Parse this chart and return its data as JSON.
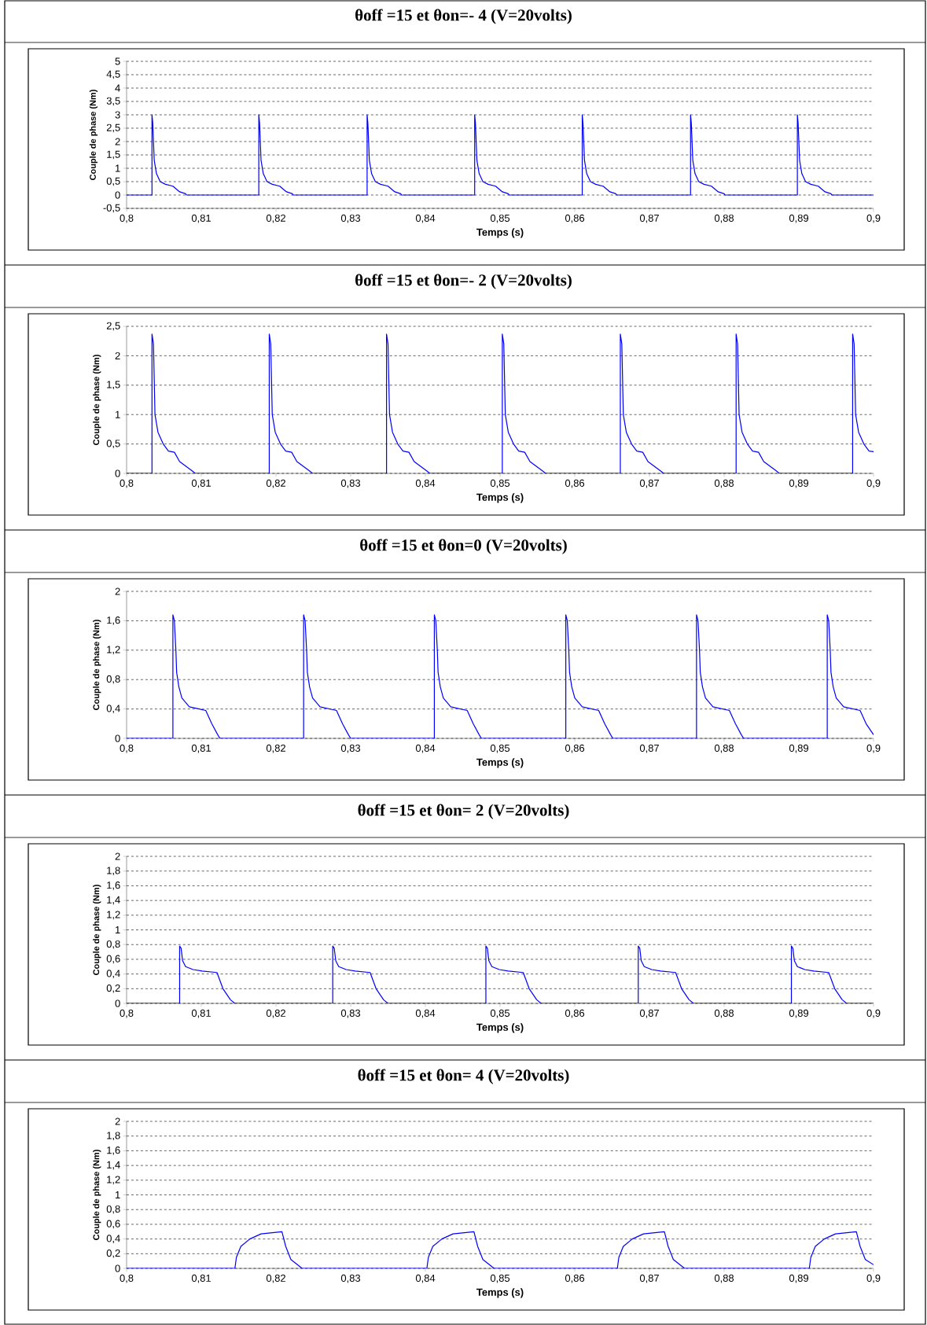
{
  "chart_data": [
    {
      "type": "line",
      "title": "θoff =15 et θon=- 4  (V=20volts)",
      "xlabel": "Temps (s)",
      "ylabel": "Couple de phase (Nm)",
      "xlim": [
        0.8,
        0.9
      ],
      "ylim": [
        -0.5,
        5
      ],
      "grid": "y",
      "xticks": [
        {
          "value": 0.8,
          "label": "0,8"
        },
        {
          "value": 0.81,
          "label": "0,81"
        },
        {
          "value": 0.82,
          "label": "0,82"
        },
        {
          "value": 0.83,
          "label": "0,83"
        },
        {
          "value": 0.84,
          "label": "0,84"
        },
        {
          "value": 0.85,
          "label": "0,85"
        },
        {
          "value": 0.86,
          "label": "0,86"
        },
        {
          "value": 0.87,
          "label": "0,87"
        },
        {
          "value": 0.88,
          "label": "0,88"
        },
        {
          "value": 0.89,
          "label": "0,89"
        },
        {
          "value": 0.9,
          "label": "0,9"
        }
      ],
      "yticks": [
        {
          "value": -0.5,
          "label": "-0,5"
        },
        0,
        {
          "value": 0.5,
          "label": "0,5"
        },
        1,
        {
          "value": 1.5,
          "label": "1,5"
        },
        2,
        {
          "value": 2.5,
          "label": "2,5"
        },
        3,
        {
          "value": 3.5,
          "label": "3,5"
        },
        4,
        {
          "value": 4.5,
          "label": "4,5"
        },
        5
      ],
      "series": [
        {
          "color": "#0000ff",
          "x": [
            0.8,
            0.8034,
            0.8034,
            0.8035,
            0.8037,
            0.804,
            0.8045,
            0.8052,
            0.8062,
            0.8071,
            0.8079,
            0.808,
            0.8177,
            0.8177,
            0.8178,
            0.818,
            0.8183,
            0.8188,
            0.8195,
            0.8205,
            0.8214,
            0.8222,
            0.8223,
            0.8322,
            0.8322,
            0.8323,
            0.8325,
            0.8328,
            0.8333,
            0.834,
            0.835,
            0.8359,
            0.8367,
            0.8368,
            0.8466,
            0.8466,
            0.8467,
            0.8469,
            0.8472,
            0.8477,
            0.8484,
            0.8494,
            0.8503,
            0.8511,
            0.8512,
            0.861,
            0.861,
            0.8611,
            0.8613,
            0.8616,
            0.8621,
            0.8628,
            0.8638,
            0.8647,
            0.8655,
            0.8656,
            0.8755,
            0.8755,
            0.8756,
            0.8758,
            0.8761,
            0.8766,
            0.8773,
            0.8783,
            0.8792,
            0.88,
            0.8801,
            0.8898,
            0.8898,
            0.8899,
            0.8901,
            0.8904,
            0.8909,
            0.8916,
            0.8926,
            0.8935,
            0.8943,
            0.8944,
            0.9
          ],
          "values": [
            0,
            0,
            3,
            2.7,
            1.3,
            0.8,
            0.5,
            0.4,
            0.33,
            0.12,
            0.05,
            0,
            0,
            3,
            2.7,
            1.3,
            0.8,
            0.5,
            0.4,
            0.33,
            0.12,
            0.05,
            0,
            0,
            3,
            2.7,
            1.3,
            0.8,
            0.5,
            0.4,
            0.33,
            0.12,
            0.05,
            0,
            0,
            3,
            2.7,
            1.3,
            0.8,
            0.5,
            0.4,
            0.33,
            0.12,
            0.05,
            0,
            0,
            3,
            2.7,
            1.3,
            0.8,
            0.5,
            0.4,
            0.33,
            0.12,
            0.05,
            0,
            0,
            3,
            2.7,
            1.3,
            0.8,
            0.5,
            0.4,
            0.33,
            0.12,
            0.05,
            0,
            0,
            3,
            2.7,
            1.3,
            0.8,
            0.5,
            0.4,
            0.33,
            0.12,
            0.05,
            0,
            0
          ]
        }
      ]
    },
    {
      "type": "line",
      "title": "θoff =15 et θon=- 2  (V=20volts)",
      "xlabel": "Temps (s)",
      "ylabel": "Couple de phase (Nm)",
      "xlim": [
        0.8,
        0.9
      ],
      "ylim": [
        0,
        2.5
      ],
      "grid": "y",
      "xticks": [
        {
          "value": 0.8,
          "label": "0,8"
        },
        {
          "value": 0.81,
          "label": "0,81"
        },
        {
          "value": 0.82,
          "label": "0,82"
        },
        {
          "value": 0.83,
          "label": "0,83"
        },
        {
          "value": 0.84,
          "label": "0,84"
        },
        {
          "value": 0.85,
          "label": "0,85"
        },
        {
          "value": 0.86,
          "label": "0,86"
        },
        {
          "value": 0.87,
          "label": "0,87"
        },
        {
          "value": 0.88,
          "label": "0,88"
        },
        {
          "value": 0.89,
          "label": "0,89"
        },
        {
          "value": 0.9,
          "label": "0,9"
        }
      ],
      "yticks": [
        0,
        {
          "value": 0.5,
          "label": "0,5"
        },
        1,
        {
          "value": 1.5,
          "label": "1,5"
        },
        2,
        {
          "value": 2.5,
          "label": "2,5"
        }
      ],
      "series": [
        {
          "color": "#0000ff",
          "x": [
            0.8,
            0.8034,
            0.8034,
            0.8036,
            0.8038,
            0.8042,
            0.8049,
            0.8056,
            0.8064,
            0.8071,
            0.8087,
            0.8092,
            0.8191,
            0.8191,
            0.8193,
            0.8195,
            0.8199,
            0.8206,
            0.8213,
            0.8221,
            0.8228,
            0.8244,
            0.8249,
            0.8348,
            0.8348,
            0.835,
            0.8352,
            0.8356,
            0.8363,
            0.837,
            0.8378,
            0.8385,
            0.8401,
            0.8406,
            0.8503,
            0.8503,
            0.8505,
            0.8507,
            0.8511,
            0.8518,
            0.8525,
            0.8533,
            0.854,
            0.8556,
            0.8561,
            0.8661,
            0.8661,
            0.8663,
            0.8665,
            0.8669,
            0.8676,
            0.8683,
            0.8691,
            0.8698,
            0.8714,
            0.8719,
            0.8816,
            0.8816,
            0.8818,
            0.882,
            0.8824,
            0.8831,
            0.8838,
            0.8846,
            0.8853,
            0.8869,
            0.8874,
            0.8972,
            0.8972,
            0.8974,
            0.8976,
            0.898,
            0.8987,
            0.8994,
            0.9
          ],
          "values": [
            0,
            0,
            2.37,
            2.2,
            1.0,
            0.7,
            0.5,
            0.38,
            0.36,
            0.2,
            0.05,
            0,
            0,
            2.37,
            2.2,
            1.0,
            0.7,
            0.5,
            0.38,
            0.36,
            0.2,
            0.05,
            0,
            0,
            2.37,
            2.2,
            1.0,
            0.7,
            0.5,
            0.38,
            0.36,
            0.2,
            0.05,
            0,
            0,
            2.37,
            2.2,
            1.0,
            0.7,
            0.5,
            0.38,
            0.36,
            0.2,
            0.05,
            0,
            0,
            2.37,
            2.2,
            1.0,
            0.7,
            0.5,
            0.38,
            0.36,
            0.2,
            0.05,
            0,
            0,
            2.37,
            2.2,
            1.0,
            0.7,
            0.5,
            0.38,
            0.36,
            0.2,
            0.05,
            0,
            0,
            2.37,
            2.2,
            1.0,
            0.7,
            0.5,
            0.38,
            0.37
          ]
        }
      ]
    },
    {
      "type": "line",
      "title": "θoff =15 et θon=0  (V=20volts)",
      "xlabel": "Temps (s)",
      "ylabel": "Couple de phase (Nm)",
      "xlim": [
        0.8,
        0.9
      ],
      "ylim": [
        0,
        2
      ],
      "grid": "y",
      "xticks": [
        {
          "value": 0.8,
          "label": "0,8"
        },
        {
          "value": 0.81,
          "label": "0,81"
        },
        {
          "value": 0.82,
          "label": "0,82"
        },
        {
          "value": 0.83,
          "label": "0,83"
        },
        {
          "value": 0.84,
          "label": "0,84"
        },
        {
          "value": 0.85,
          "label": "0,85"
        },
        {
          "value": 0.86,
          "label": "0,86"
        },
        {
          "value": 0.87,
          "label": "0,87"
        },
        {
          "value": 0.88,
          "label": "0,88"
        },
        {
          "value": 0.89,
          "label": "0,89"
        },
        {
          "value": 0.9,
          "label": "0,9"
        }
      ],
      "yticks": [
        0,
        {
          "value": 0.4,
          "label": "0,4"
        },
        {
          "value": 0.8,
          "label": "0,8"
        },
        {
          "value": 1.2,
          "label": "1,2"
        },
        {
          "value": 1.6,
          "label": "1,6"
        },
        2
      ],
      "series": [
        {
          "color": "#0000ff",
          "x": [
            0.8,
            0.8062,
            0.8062,
            0.8064,
            0.8066,
            0.8067,
            0.807,
            0.8074,
            0.8084,
            0.8106,
            0.8114,
            0.8122,
            0.8125,
            0.8237,
            0.8237,
            0.8239,
            0.8241,
            0.8242,
            0.8245,
            0.8249,
            0.8259,
            0.8281,
            0.8289,
            0.8297,
            0.83,
            0.8412,
            0.8412,
            0.8414,
            0.8416,
            0.8417,
            0.842,
            0.8424,
            0.8434,
            0.8456,
            0.8464,
            0.8472,
            0.8475,
            0.8588,
            0.8588,
            0.859,
            0.8592,
            0.8593,
            0.8596,
            0.86,
            0.861,
            0.8632,
            0.864,
            0.8648,
            0.8651,
            0.8763,
            0.8763,
            0.8765,
            0.8767,
            0.8768,
            0.8771,
            0.8775,
            0.8785,
            0.8807,
            0.8815,
            0.8823,
            0.8826,
            0.8938,
            0.8938,
            0.894,
            0.8942,
            0.8943,
            0.8946,
            0.895,
            0.896,
            0.8982,
            0.899,
            0.9
          ],
          "values": [
            0,
            0,
            1.68,
            1.6,
            1.2,
            0.9,
            0.7,
            0.55,
            0.43,
            0.38,
            0.2,
            0.05,
            0,
            0,
            1.68,
            1.6,
            1.2,
            0.9,
            0.7,
            0.55,
            0.43,
            0.38,
            0.2,
            0.05,
            0,
            0,
            1.68,
            1.6,
            1.2,
            0.9,
            0.7,
            0.55,
            0.43,
            0.38,
            0.2,
            0.05,
            0,
            0,
            1.68,
            1.6,
            1.2,
            0.9,
            0.7,
            0.55,
            0.43,
            0.38,
            0.2,
            0.05,
            0,
            0,
            1.68,
            1.6,
            1.2,
            0.9,
            0.7,
            0.55,
            0.43,
            0.38,
            0.2,
            0.05,
            0,
            0,
            1.68,
            1.6,
            1.2,
            0.9,
            0.7,
            0.55,
            0.43,
            0.38,
            0.2,
            0.05
          ]
        }
      ]
    },
    {
      "type": "line",
      "title": "θoff =15 et θon= 2  (V=20volts)",
      "xlabel": "Temps (s)",
      "ylabel": "Couple de phase (Nm)",
      "xlim": [
        0.8,
        0.9
      ],
      "ylim": [
        0,
        2
      ],
      "grid": "y",
      "xticks": [
        {
          "value": 0.8,
          "label": "0,8"
        },
        {
          "value": 0.81,
          "label": "0,81"
        },
        {
          "value": 0.82,
          "label": "0,82"
        },
        {
          "value": 0.83,
          "label": "0,83"
        },
        {
          "value": 0.84,
          "label": "0,84"
        },
        {
          "value": 0.85,
          "label": "0,85"
        },
        {
          "value": 0.86,
          "label": "0,86"
        },
        {
          "value": 0.87,
          "label": "0,87"
        },
        {
          "value": 0.88,
          "label": "0,88"
        },
        {
          "value": 0.89,
          "label": "0,89"
        },
        {
          "value": 0.9,
          "label": "0,9"
        }
      ],
      "yticks": [
        0,
        {
          "value": 0.2,
          "label": "0,2"
        },
        {
          "value": 0.4,
          "label": "0,4"
        },
        {
          "value": 0.6,
          "label": "0,6"
        },
        {
          "value": 0.8,
          "label": "0,8"
        },
        1,
        {
          "value": 1.2,
          "label": "1,2"
        },
        {
          "value": 1.4,
          "label": "1,4"
        },
        {
          "value": 1.6,
          "label": "1,6"
        },
        {
          "value": 1.8,
          "label": "1,8"
        },
        2
      ],
      "series": [
        {
          "color": "#0000ff",
          "x": [
            0.8,
            0.8071,
            0.8071,
            0.8073,
            0.8075,
            0.8079,
            0.8089,
            0.8101,
            0.8121,
            0.8129,
            0.8139,
            0.8145,
            0.8276,
            0.8276,
            0.8278,
            0.828,
            0.8284,
            0.8294,
            0.8306,
            0.8326,
            0.8334,
            0.8344,
            0.835,
            0.8481,
            0.8481,
            0.8483,
            0.8485,
            0.8489,
            0.8499,
            0.8511,
            0.8531,
            0.8539,
            0.8549,
            0.8555,
            0.8685,
            0.8685,
            0.8687,
            0.8689,
            0.8693,
            0.8703,
            0.8715,
            0.8735,
            0.8743,
            0.8753,
            0.8759,
            0.889,
            0.889,
            0.8892,
            0.8894,
            0.8898,
            0.8908,
            0.892,
            0.894,
            0.8948,
            0.8958,
            0.8964,
            0.9
          ],
          "values": [
            0,
            0,
            0.78,
            0.75,
            0.58,
            0.5,
            0.46,
            0.44,
            0.42,
            0.2,
            0.05,
            0,
            0,
            0.78,
            0.75,
            0.58,
            0.5,
            0.46,
            0.44,
            0.42,
            0.2,
            0.05,
            0,
            0,
            0.78,
            0.75,
            0.58,
            0.5,
            0.46,
            0.44,
            0.42,
            0.2,
            0.05,
            0,
            0,
            0.78,
            0.75,
            0.58,
            0.5,
            0.46,
            0.44,
            0.42,
            0.2,
            0.05,
            0,
            0,
            0.78,
            0.75,
            0.58,
            0.5,
            0.46,
            0.44,
            0.42,
            0.2,
            0.05,
            0,
            0
          ]
        }
      ]
    },
    {
      "type": "line",
      "title": "θoff =15 et θon= 4  (V=20volts)",
      "xlabel": "Temps (s)",
      "ylabel": "Couple de phase (Nm)",
      "xlim": [
        0.8,
        0.9
      ],
      "ylim": [
        0,
        2
      ],
      "grid": "y",
      "xticks": [
        {
          "value": 0.8,
          "label": "0,8"
        },
        {
          "value": 0.81,
          "label": "0,81"
        },
        {
          "value": 0.82,
          "label": "0,82"
        },
        {
          "value": 0.83,
          "label": "0,83"
        },
        {
          "value": 0.84,
          "label": "0,84"
        },
        {
          "value": 0.85,
          "label": "0,85"
        },
        {
          "value": 0.86,
          "label": "0,86"
        },
        {
          "value": 0.87,
          "label": "0,87"
        },
        {
          "value": 0.88,
          "label": "0,88"
        },
        {
          "value": 0.89,
          "label": "0,89"
        },
        {
          "value": 0.9,
          "label": "0,9"
        }
      ],
      "yticks": [
        0,
        {
          "value": 0.2,
          "label": "0,2"
        },
        {
          "value": 0.4,
          "label": "0,4"
        },
        {
          "value": 0.6,
          "label": "0,6"
        },
        {
          "value": 0.8,
          "label": "0,8"
        },
        1,
        {
          "value": 1.2,
          "label": "1,2"
        },
        {
          "value": 1.4,
          "label": "1,4"
        },
        {
          "value": 1.6,
          "label": "1,6"
        },
        {
          "value": 1.8,
          "label": "1,8"
        },
        2
      ],
      "series": [
        {
          "color": "#0000ff",
          "x": [
            0.8,
            0.8145,
            0.8147,
            0.8153,
            0.8165,
            0.818,
            0.8208,
            0.8213,
            0.822,
            0.8235,
            0.8402,
            0.8404,
            0.841,
            0.8422,
            0.8437,
            0.8465,
            0.847,
            0.8477,
            0.8492,
            0.8657,
            0.8659,
            0.8665,
            0.8677,
            0.8692,
            0.872,
            0.8725,
            0.8732,
            0.8747,
            0.8914,
            0.8916,
            0.8922,
            0.8934,
            0.8949,
            0.8977,
            0.8982,
            0.8989,
            0.9
          ],
          "values": [
            0,
            0,
            0.15,
            0.3,
            0.4,
            0.47,
            0.5,
            0.3,
            0.12,
            0,
            0,
            0.15,
            0.3,
            0.4,
            0.47,
            0.5,
            0.3,
            0.12,
            0,
            0,
            0.15,
            0.3,
            0.4,
            0.47,
            0.5,
            0.3,
            0.12,
            0,
            0,
            0.15,
            0.3,
            0.4,
            0.47,
            0.5,
            0.3,
            0.12,
            0.05
          ]
        }
      ]
    }
  ]
}
